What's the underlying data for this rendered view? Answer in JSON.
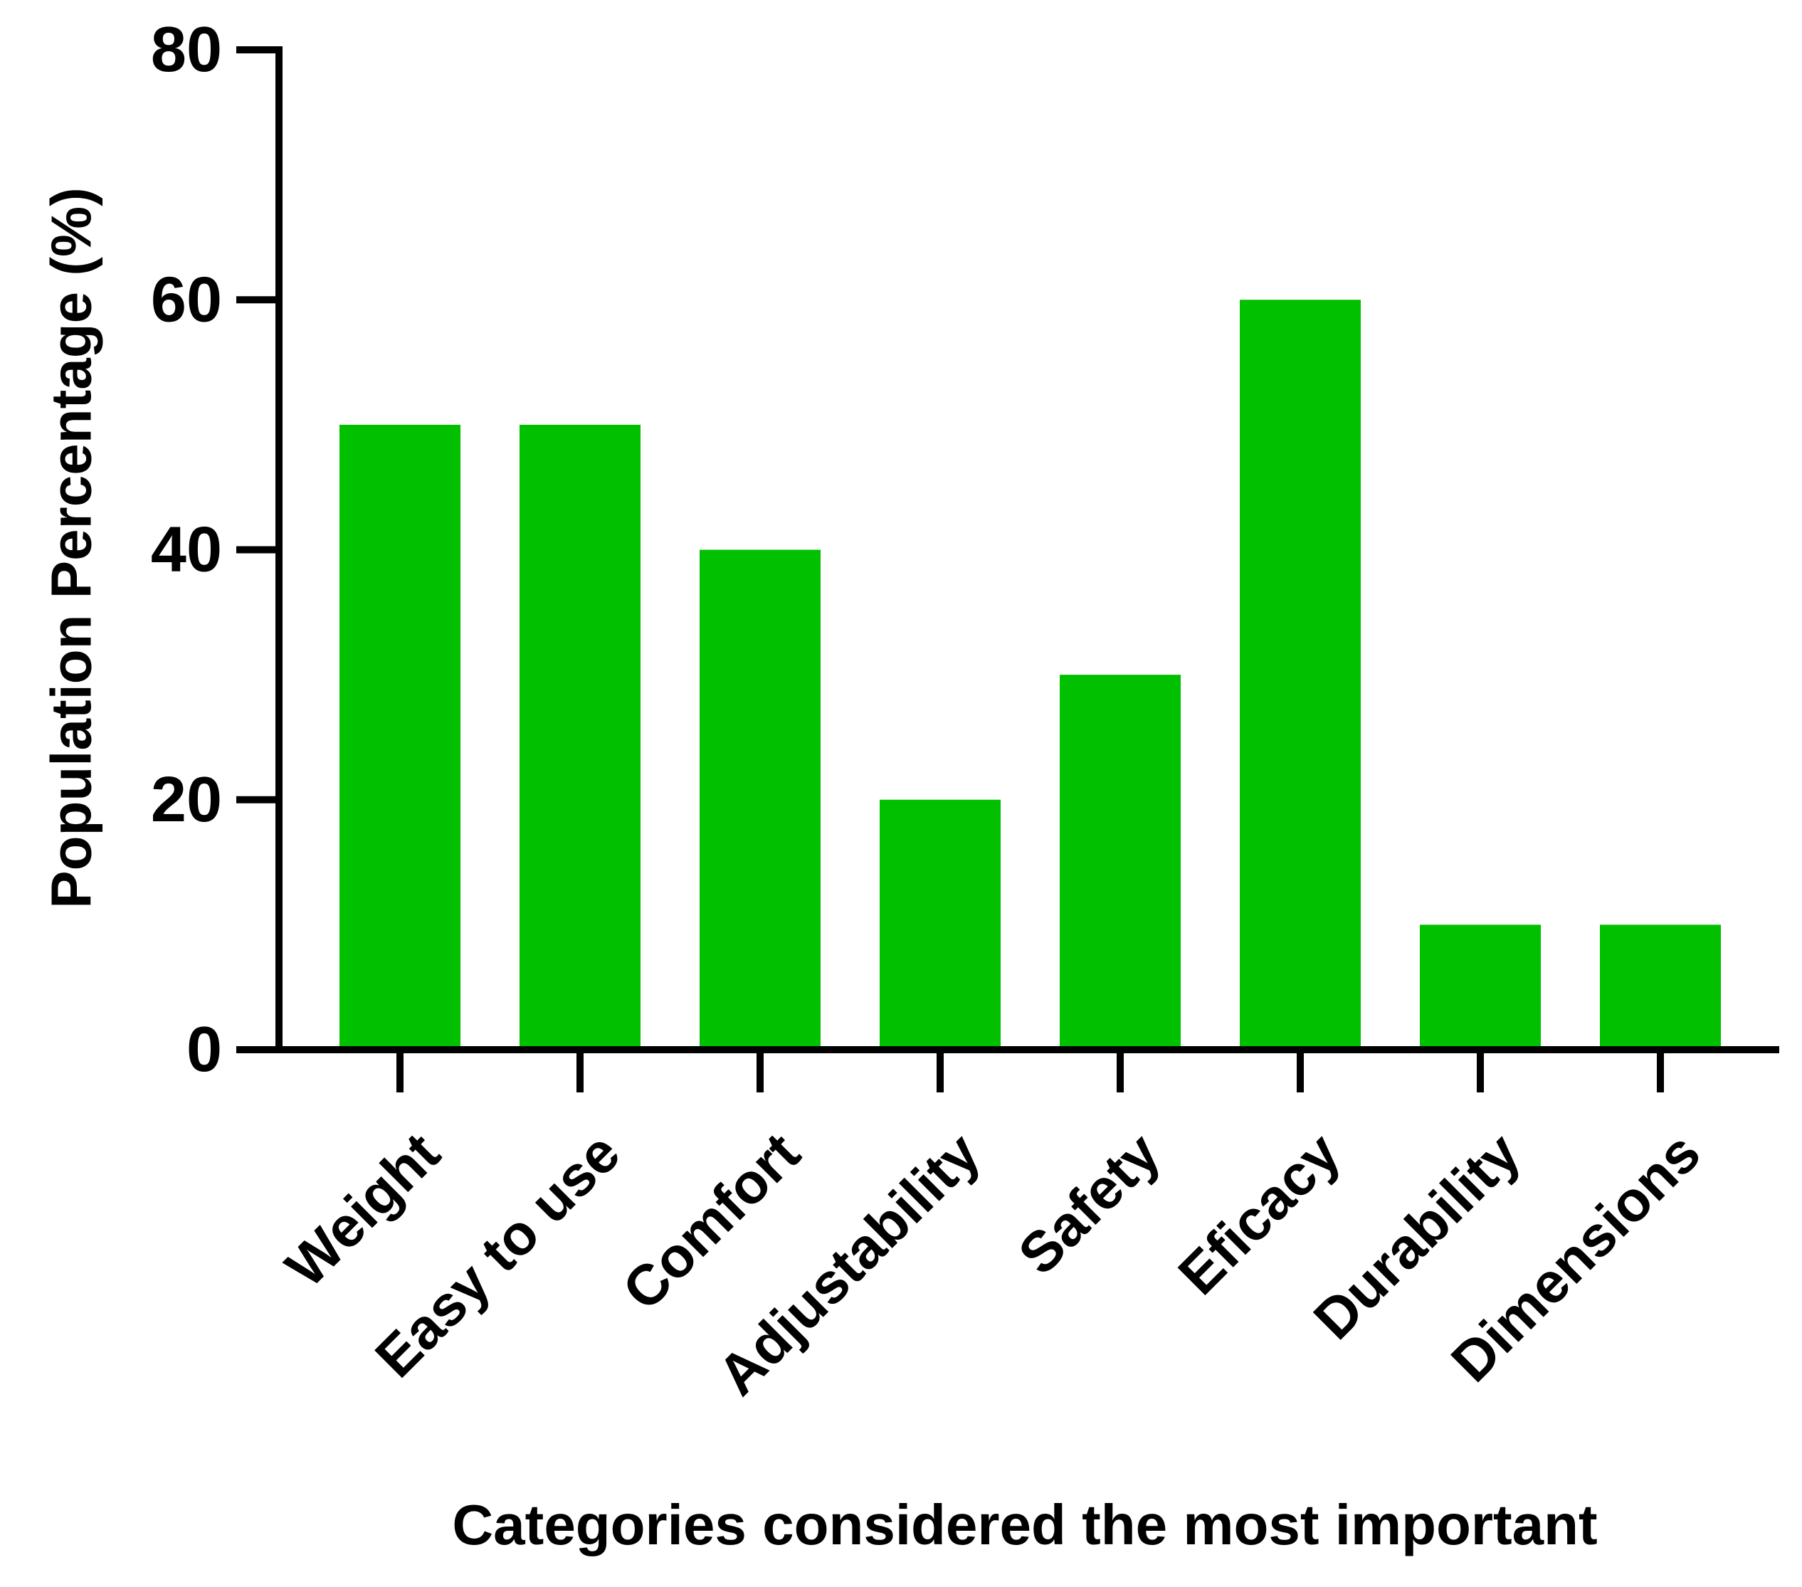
{
  "chart_data": {
    "type": "bar",
    "title": "",
    "xlabel": "Categories considered the most important",
    "ylabel": "Population Percentage (%)",
    "ylim": [
      0,
      80
    ],
    "yticks": [
      "0",
      "20",
      "40",
      "60",
      "80"
    ],
    "categories": [
      "Weight",
      "Easy to use",
      "Comfort",
      "Adjustability",
      "Safety",
      "Eficacy",
      "Durability",
      "Dimensions"
    ],
    "values": [
      50,
      50,
      40,
      20,
      30,
      60,
      10,
      10
    ],
    "grid": false,
    "legend": "none",
    "colors": {
      "bar": "#00c000",
      "axis": "#000000"
    }
  }
}
